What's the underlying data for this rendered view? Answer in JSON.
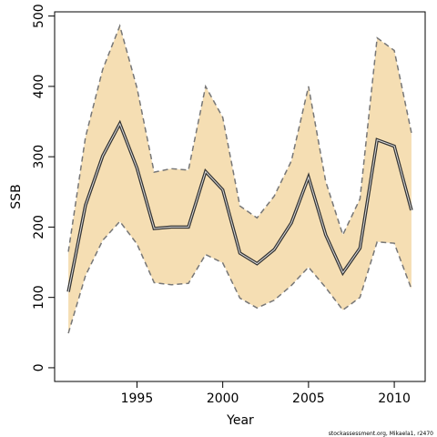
{
  "chart_data": {
    "type": "band-line",
    "xlabel": "Year",
    "ylabel": "SSB",
    "footer": "stockassessment.org, Mikaela1, r2470",
    "x": [
      1991,
      1992,
      1993,
      1994,
      1995,
      1996,
      1997,
      1998,
      1999,
      2000,
      2001,
      2002,
      2003,
      2004,
      2005,
      2006,
      2007,
      2008,
      2009,
      2010,
      2011
    ],
    "values": [
      108,
      231,
      301,
      347,
      284,
      198,
      200,
      200,
      279,
      253,
      163,
      148,
      168,
      206,
      271,
      189,
      135,
      170,
      324,
      315,
      224
    ],
    "lower": [
      49,
      131,
      181,
      208,
      176,
      121,
      118,
      120,
      161,
      149,
      99,
      85,
      96,
      117,
      143,
      114,
      82,
      100,
      179,
      177,
      112
    ],
    "upper": [
      165,
      328,
      424,
      486,
      398,
      278,
      283,
      281,
      400,
      356,
      230,
      213,
      244,
      294,
      400,
      265,
      189,
      240,
      469,
      451,
      334
    ],
    "line_color": "#333333",
    "band_color": "#f5deb3",
    "bound_color": "#777777",
    "xlim": [
      1990.2,
      2011.8
    ],
    "ylim": [
      -19.5,
      506
    ],
    "xticks": [
      1995,
      2000,
      2005,
      2010
    ],
    "yticks": [
      0,
      100,
      200,
      300,
      400,
      500
    ]
  }
}
